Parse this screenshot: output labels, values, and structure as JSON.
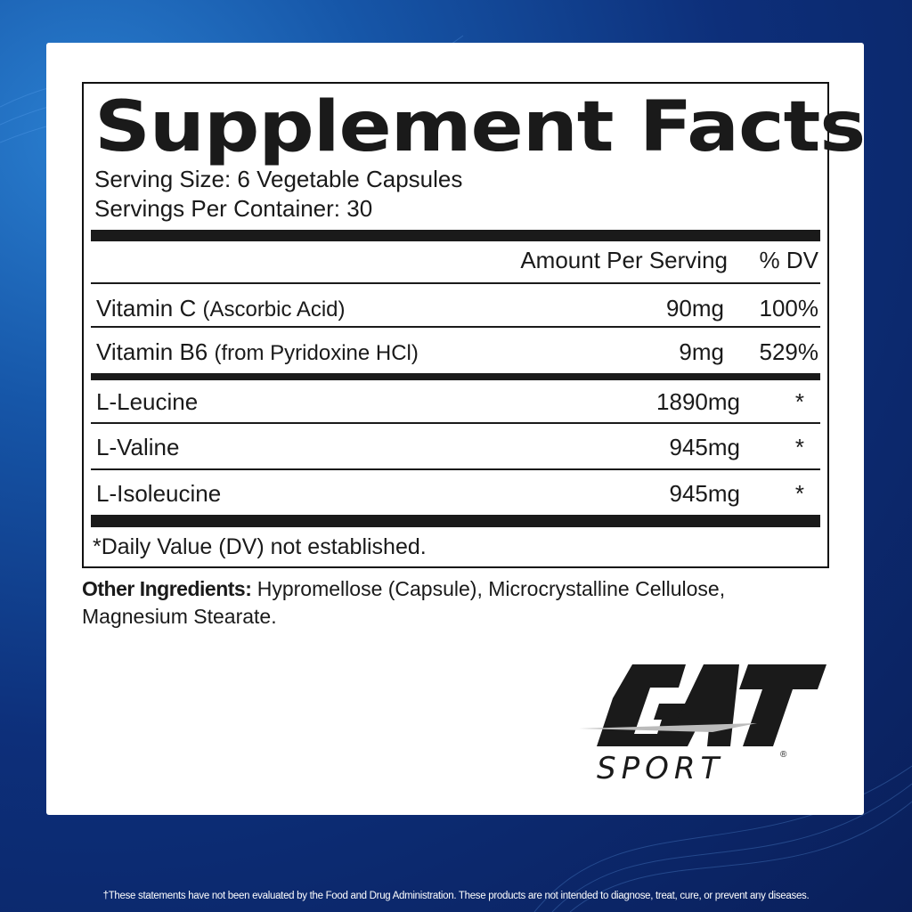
{
  "title": "Supplement Facts",
  "serving_size": "Serving Size: 6 Vegetable Capsules",
  "servings_per_container": "Servings Per Container: 30",
  "header": {
    "amount": "Amount Per Serving",
    "dv": "% DV"
  },
  "rows": [
    {
      "name": "Vitamin C",
      "detail": "(Ascorbic Acid)",
      "amount": "90mg",
      "dv": "100%"
    },
    {
      "name": "Vitamin B6",
      "detail": "(from  Pyridoxine HCl)",
      "amount": "9mg",
      "dv": "529%"
    },
    {
      "name": "L-Leucine",
      "amount": "1890mg",
      "dv": "*"
    },
    {
      "name": "L-Valine",
      "amount": "945mg",
      "dv": "*"
    },
    {
      "name": "L-Isoleucine",
      "amount": "945mg",
      "dv": "*"
    }
  ],
  "footnote": "*Daily Value (DV) not established.",
  "other_ingredients": {
    "label": "Other Ingredients:",
    "text": " Hypromellose (Capsule), Microcrystalline Cellulose, Magnesium Stearate."
  },
  "logo": {
    "brand": "GAT",
    "sub": "SPORT",
    "mark": "®"
  },
  "disclaimer": "†These statements have not been evaluated by the Food and Drug Administration. These products are not intended to diagnose, treat, cure, or prevent any diseases."
}
